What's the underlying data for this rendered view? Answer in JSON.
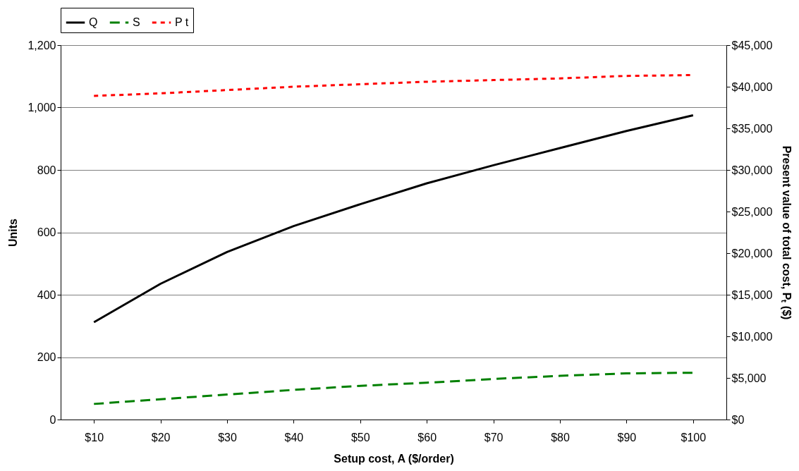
{
  "chart_data": {
    "type": "line",
    "categories": [
      "$10",
      "$20",
      "$30",
      "$40",
      "$50",
      "$60",
      "$70",
      "$80",
      "$90",
      "$100"
    ],
    "series": [
      {
        "name": "Q",
        "color": "#000000",
        "line_style": "solid",
        "values": [
          312,
          435,
          537,
          620,
          690,
          757,
          815,
          870,
          925,
          975
        ]
      },
      {
        "name": "S",
        "color": "#008000",
        "line_style": "dashed",
        "values": [
          50,
          65,
          80,
          95,
          108,
          118,
          130,
          140,
          148,
          150
        ]
      },
      {
        "name": "P t",
        "color": "#ff0000",
        "line_style": "dotted",
        "axis": "y2",
        "values": [
          38900,
          39200,
          39600,
          40000,
          40300,
          40600,
          40800,
          41000,
          41300,
          41400
        ]
      }
    ],
    "xlabel": "Setup cost, A  ($/order)",
    "ylabel": "Units",
    "y2label": "Present value of total cost, Pₜ ($)",
    "ylim": [
      0,
      1200
    ],
    "yticks": [
      {
        "value": 0,
        "label": "0"
      },
      {
        "value": 200,
        "label": "200"
      },
      {
        "value": 400,
        "label": "400"
      },
      {
        "value": 600,
        "label": "600"
      },
      {
        "value": 800,
        "label": "800"
      },
      {
        "value": 1000,
        "label": "1,000"
      },
      {
        "value": 1200,
        "label": "1,200"
      }
    ],
    "y2lim": [
      0,
      45000
    ],
    "y2ticks": [
      {
        "value": 0,
        "label": "$0"
      },
      {
        "value": 5000,
        "label": "$5,000"
      },
      {
        "value": 10000,
        "label": "$10,000"
      },
      {
        "value": 15000,
        "label": "$15,000"
      },
      {
        "value": 20000,
        "label": "$20,000"
      },
      {
        "value": 25000,
        "label": "$25,000"
      },
      {
        "value": 30000,
        "label": "$30,000"
      },
      {
        "value": 35000,
        "label": "$35,000"
      },
      {
        "value": 40000,
        "label": "$40,000"
      },
      {
        "value": 45000,
        "label": "$45,000"
      }
    ],
    "grid": "y",
    "legend": "top",
    "marker": "none"
  }
}
